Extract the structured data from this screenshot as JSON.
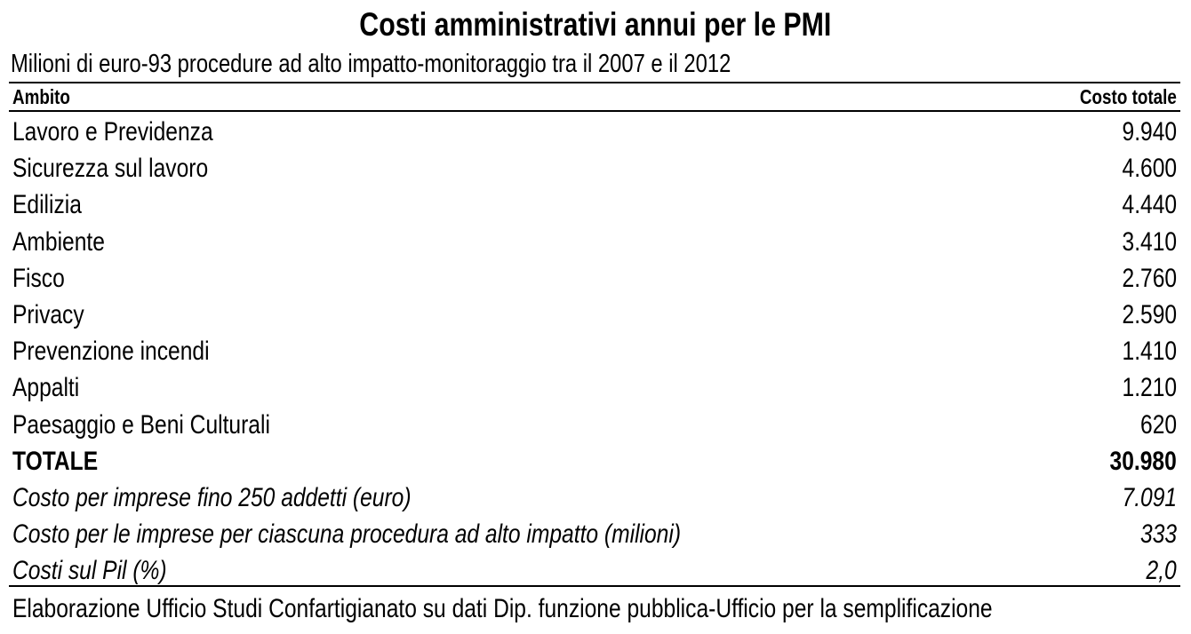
{
  "title": "Costi amministrativi annui per le PMI",
  "subtitle": "Milioni di euro-93 procedure ad alto impatto-monitoraggio tra il 2007 e il 2012",
  "columns": [
    "Ambito",
    "Costo totale"
  ],
  "rows": [
    {
      "label": "Lavoro e Previdenza",
      "value": "9.940"
    },
    {
      "label": "Sicurezza sul lavoro",
      "value": "4.600"
    },
    {
      "label": "Edilizia",
      "value": "4.440"
    },
    {
      "label": "Ambiente",
      "value": "3.410"
    },
    {
      "label": "Fisco",
      "value": "2.760"
    },
    {
      "label": "Privacy",
      "value": "2.590"
    },
    {
      "label": "Prevenzione incendi",
      "value": "1.410"
    },
    {
      "label": "Appalti",
      "value": "1.210"
    },
    {
      "label": "Paesaggio e Beni Culturali",
      "value": "620"
    }
  ],
  "total": {
    "label": "TOTALE",
    "value": "30.980"
  },
  "notes": [
    {
      "label": "Costo per imprese fino 250 addetti (euro)",
      "value": "7.091"
    },
    {
      "label": "Costo per le imprese per ciascuna procedura ad alto impatto (milioni)",
      "value": "333"
    },
    {
      "label": "Costi sul Pil (%)",
      "value": "2,0"
    }
  ],
  "footer": "Elaborazione Ufficio Studi Confartigianato su dati Dip. funzione pubblica-Ufficio per la semplificazione"
}
